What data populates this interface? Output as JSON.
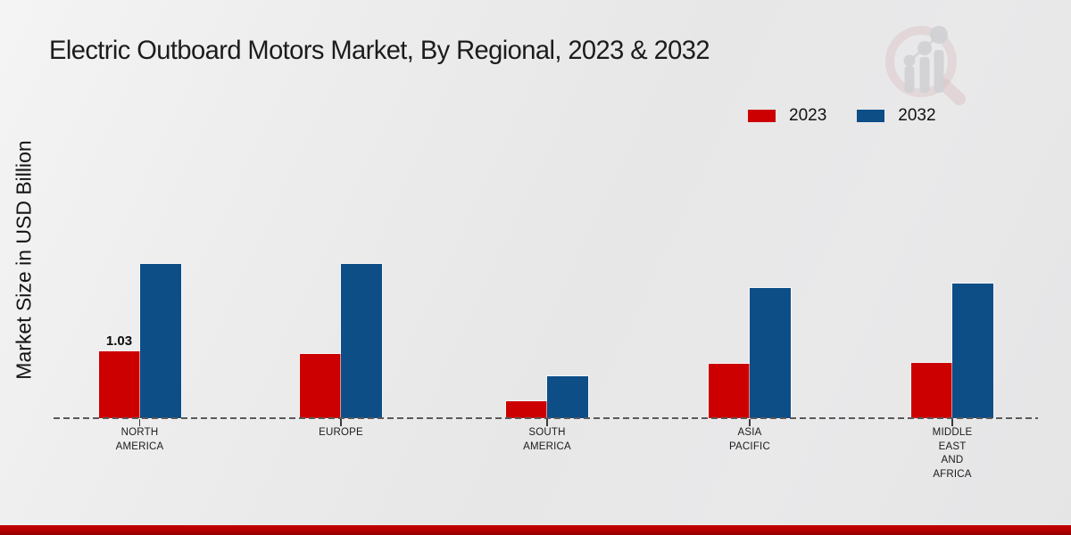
{
  "title": "Electric Outboard Motors Market, By Regional, 2023 & 2032",
  "y_axis_label": "Market Size in USD Billion",
  "legend": {
    "items": [
      {
        "label": "2023",
        "color": "#cc0000"
      },
      {
        "label": "2032",
        "color": "#0d4e87"
      }
    ],
    "position": "top-right"
  },
  "watermark": {
    "name": "market-research-future-logo",
    "ring_color": "#cf9fa6",
    "glyph_color": "#bfbfc4"
  },
  "footer": {
    "bar_color": "#b30000"
  },
  "chart_data": {
    "type": "bar",
    "title": "Electric Outboard Motors Market, By Regional, 2023 & 2032",
    "ylabel": "Market Size in USD Billion",
    "xlabel": "",
    "categories": [
      "NORTH AMERICA",
      "EUROPE",
      "SOUTH AMERICA",
      "ASIA PACIFIC",
      "MIDDLE EAST AND AFRICA"
    ],
    "category_lines": [
      [
        "NORTH",
        "AMERICA"
      ],
      [
        "EUROPE"
      ],
      [
        "SOUTH",
        "AMERICA"
      ],
      [
        "ASIA",
        "PACIFIC"
      ],
      [
        "MIDDLE",
        "EAST",
        "AND",
        "AFRICA"
      ]
    ],
    "series": [
      {
        "name": "2023",
        "color": "#cc0000",
        "values": [
          1.03,
          0.99,
          0.26,
          0.84,
          0.85
        ]
      },
      {
        "name": "2032",
        "color": "#0d4e87",
        "values": [
          2.38,
          2.38,
          0.65,
          2.01,
          2.07
        ]
      }
    ],
    "data_labels": [
      {
        "series_index": 0,
        "category_index": 0,
        "text": "1.03"
      }
    ],
    "unit": "USD Billion",
    "ylim": [
      0,
      2.6
    ],
    "grid": false,
    "baseline_style": "dashed",
    "legend_position": "top-right"
  }
}
